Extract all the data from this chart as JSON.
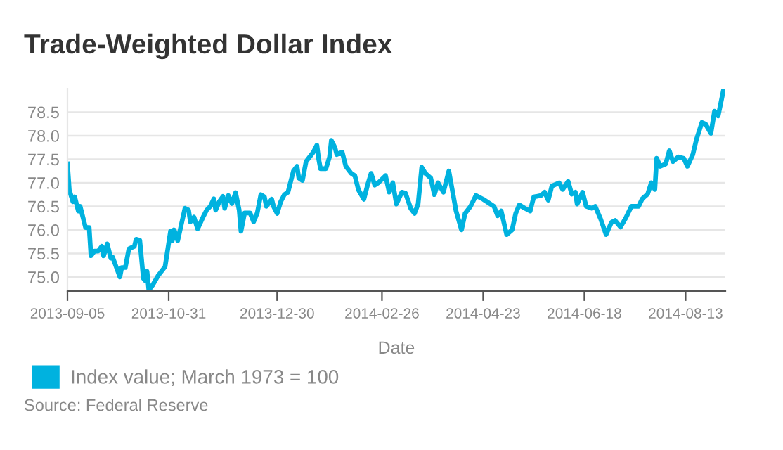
{
  "chart_data": {
    "type": "line",
    "title": "Trade-Weighted Dollar Index",
    "xlabel": "Date",
    "annotations": [
      "Source: Federal Reserve"
    ],
    "x": [
      "2013-09-05",
      "2013-09-06",
      "2013-09-08",
      "2013-09-09",
      "2013-09-11",
      "2013-09-12",
      "2013-09-14",
      "2013-09-15",
      "2013-09-17",
      "2013-09-18",
      "2013-09-20",
      "2013-09-22",
      "2013-09-24",
      "2013-09-25",
      "2013-09-27",
      "2013-09-29",
      "2013-09-30",
      "2013-10-04",
      "2013-10-05",
      "2013-10-07",
      "2013-10-09",
      "2013-10-12",
      "2013-10-13",
      "2013-10-15",
      "2013-10-17",
      "2013-10-18",
      "2013-10-19",
      "2013-10-20",
      "2013-10-22",
      "2013-10-25",
      "2013-10-29",
      "2013-11-01",
      "2013-11-02",
      "2013-11-03",
      "2013-11-05",
      "2013-11-09",
      "2013-11-11",
      "2013-11-12",
      "2013-11-14",
      "2013-11-16",
      "2013-11-19",
      "2013-11-21",
      "2013-11-23",
      "2013-11-25",
      "2013-11-26",
      "2013-11-28",
      "2013-11-30",
      "2013-12-01",
      "2013-12-03",
      "2013-12-05",
      "2013-12-07",
      "2013-12-09",
      "2013-12-10",
      "2013-12-12",
      "2013-12-15",
      "2013-12-17",
      "2013-12-19",
      "2013-12-21",
      "2013-12-23",
      "2013-12-24",
      "2013-12-27",
      "2013-12-28",
      "2013-12-30",
      "2014-01-01",
      "2014-01-03",
      "2014-01-05",
      "2014-01-08",
      "2014-01-10",
      "2014-01-11",
      "2014-01-13",
      "2014-01-15",
      "2014-01-17",
      "2014-01-19",
      "2014-01-21",
      "2014-01-22",
      "2014-01-23",
      "2014-01-26",
      "2014-01-28",
      "2014-01-29",
      "2014-01-31",
      "2014-02-01",
      "2014-02-04",
      "2014-02-06",
      "2014-02-09",
      "2014-02-11",
      "2014-02-13",
      "2014-02-16",
      "2014-02-18",
      "2014-02-20",
      "2014-02-22",
      "2014-02-24",
      "2014-02-28",
      "2014-03-02",
      "2014-03-04",
      "2014-03-06",
      "2014-03-09",
      "2014-03-11",
      "2014-03-14",
      "2014-03-16",
      "2014-03-18",
      "2014-03-20",
      "2014-03-22",
      "2014-03-25",
      "2014-03-27",
      "2014-03-29",
      "2014-04-01",
      "2014-04-04",
      "2014-04-06",
      "2014-04-08",
      "2014-04-11",
      "2014-04-13",
      "2014-04-16",
      "2014-04-19",
      "2014-04-23",
      "2014-04-27",
      "2014-04-29",
      "2014-05-01",
      "2014-05-03",
      "2014-05-06",
      "2014-05-09",
      "2014-05-11",
      "2014-05-13",
      "2014-05-16",
      "2014-05-19",
      "2014-05-21",
      "2014-05-25",
      "2014-05-27",
      "2014-05-29",
      "2014-05-31",
      "2014-06-04",
      "2014-06-06",
      "2014-06-09",
      "2014-06-11",
      "2014-06-13",
      "2014-06-14",
      "2014-06-17",
      "2014-06-19",
      "2014-06-22",
      "2014-06-24",
      "2014-06-27",
      "2014-06-30",
      "2014-07-03",
      "2014-07-05",
      "2014-07-08",
      "2014-07-11",
      "2014-07-14",
      "2014-07-18",
      "2014-07-20",
      "2014-07-23",
      "2014-07-25",
      "2014-07-27",
      "2014-07-28",
      "2014-07-30",
      "2014-08-02",
      "2014-08-04",
      "2014-08-06",
      "2014-08-09",
      "2014-08-12",
      "2014-08-14",
      "2014-08-17",
      "2014-08-19",
      "2014-08-22",
      "2014-08-24",
      "2014-08-27",
      "2014-08-29",
      "2014-08-31",
      "2014-09-03"
    ],
    "series": [
      {
        "name": "Index value; March 1973 = 100",
        "color": "#00b2df",
        "values": [
          77.4,
          76.85,
          76.6,
          76.7,
          76.4,
          76.5,
          76.2,
          76.05,
          76.05,
          75.45,
          75.55,
          75.55,
          75.65,
          75.45,
          75.7,
          75.4,
          75.42,
          75.0,
          75.2,
          75.2,
          75.6,
          75.65,
          75.8,
          75.78,
          74.97,
          74.92,
          75.12,
          74.72,
          74.82,
          75.02,
          75.22,
          75.97,
          75.77,
          76.0,
          75.77,
          76.46,
          76.42,
          76.17,
          76.27,
          76.02,
          76.27,
          76.42,
          76.5,
          76.66,
          76.42,
          76.6,
          76.71,
          76.46,
          76.73,
          76.56,
          76.79,
          76.42,
          75.97,
          76.36,
          76.36,
          76.17,
          76.36,
          76.75,
          76.7,
          76.5,
          76.65,
          76.5,
          76.35,
          76.6,
          76.75,
          76.8,
          77.25,
          77.35,
          77.1,
          77.05,
          77.45,
          77.55,
          77.65,
          77.8,
          77.5,
          77.3,
          77.3,
          77.55,
          77.9,
          77.75,
          77.6,
          77.65,
          77.35,
          77.2,
          77.15,
          76.85,
          76.65,
          76.95,
          77.2,
          76.95,
          77.0,
          77.15,
          76.8,
          77.0,
          76.55,
          76.8,
          76.78,
          76.45,
          76.35,
          76.55,
          77.33,
          77.2,
          77.1,
          76.75,
          77.0,
          76.8,
          77.25,
          76.83,
          76.4,
          76.0,
          76.35,
          76.5,
          76.73,
          76.65,
          76.55,
          76.5,
          76.3,
          76.4,
          75.9,
          76.0,
          76.35,
          76.53,
          76.46,
          76.4,
          76.7,
          76.73,
          76.8,
          76.63,
          76.93,
          77.0,
          76.86,
          77.03,
          76.76,
          76.8,
          76.55,
          76.8,
          76.5,
          76.46,
          76.5,
          76.23,
          75.9,
          76.16,
          76.2,
          76.06,
          76.26,
          76.5,
          76.5,
          76.66,
          76.76,
          77.0,
          76.86,
          77.52,
          77.35,
          77.4,
          77.68,
          77.45,
          77.55,
          77.52,
          77.35,
          77.6,
          77.92,
          78.28,
          78.25,
          78.05,
          78.52,
          78.42,
          78.98
        ]
      }
    ],
    "xlim": [
      "2013-09-05",
      "2014-09-04"
    ],
    "xticks": [
      "2013-09-05",
      "2013-10-31",
      "2013-12-30",
      "2014-02-26",
      "2014-04-23",
      "2014-06-18",
      "2014-08-13"
    ],
    "ylim": [
      74.7,
      79.0
    ],
    "yticks": [
      {
        "value": 75,
        "label": "75.0"
      },
      {
        "value": 75.5,
        "label": "75.5"
      },
      {
        "value": 76,
        "label": "76.0"
      },
      {
        "value": 76.5,
        "label": "76.5"
      },
      {
        "value": 77,
        "label": "77.0"
      },
      {
        "value": 77.5,
        "label": "77.5"
      },
      {
        "value": 78,
        "label": "78.0"
      },
      {
        "value": 78.5,
        "label": "78.5"
      }
    ],
    "grid": "y",
    "legend": "bottom",
    "marker": "none",
    "line_style": "solid"
  }
}
